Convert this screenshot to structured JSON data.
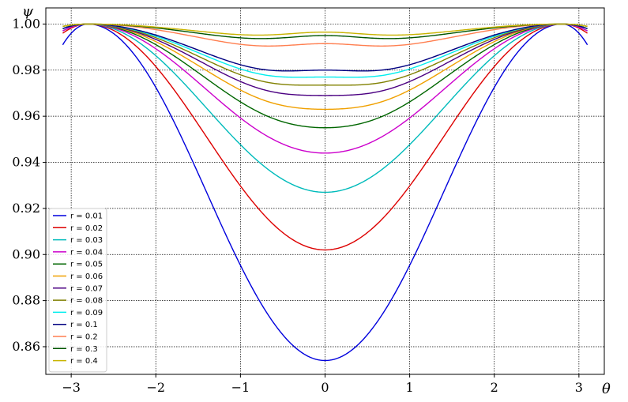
{
  "chart_data": {
    "type": "line",
    "xlabel": "θ",
    "ylabel": "ψ",
    "xlim": [
      -3.3,
      3.3
    ],
    "ylim": [
      0.848,
      1.007
    ],
    "xticks": [
      "−3",
      "−2",
      "−1",
      "0",
      "1",
      "2",
      "3"
    ],
    "yticks": [
      "0.86",
      "0.88",
      "0.90",
      "0.92",
      "0.94",
      "0.96",
      "0.98",
      "1.00"
    ],
    "grid": true,
    "legend_position": "lower-left",
    "x_range": [
      -3.1,
      3.1
    ],
    "peak_x": 2.8,
    "series": [
      {
        "name": "r = 0.01",
        "color": "#0000dd",
        "min": 0.854,
        "dip": 0.0,
        "edge": 0.991
      },
      {
        "name": "r = 0.02",
        "color": "#dd0000",
        "min": 0.902,
        "dip": 0.0,
        "edge": 0.996
      },
      {
        "name": "r = 0.03",
        "color": "#00bbbb",
        "min": 0.927,
        "dip": 0.0,
        "edge": 0.997
      },
      {
        "name": "r = 0.04",
        "color": "#cc00cc",
        "min": 0.943,
        "dip": 0.001,
        "edge": 0.997
      },
      {
        "name": "r = 0.05",
        "color": "#006600",
        "min": 0.9525,
        "dip": 0.0025,
        "edge": 0.998
      },
      {
        "name": "r = 0.06",
        "color": "#f0a000",
        "min": 0.9595,
        "dip": 0.0035,
        "edge": 0.998
      },
      {
        "name": "r = 0.07",
        "color": "#4b0082",
        "min": 0.9645,
        "dip": 0.0045,
        "edge": 0.998
      },
      {
        "name": "r = 0.08",
        "color": "#808000",
        "min": 0.9685,
        "dip": 0.005,
        "edge": 0.998
      },
      {
        "name": "r = 0.09",
        "color": "#00eeee",
        "min": 0.972,
        "dip": 0.005,
        "edge": 0.998
      },
      {
        "name": "r = 0.1",
        "color": "#000080",
        "min": 0.9745,
        "dip": 0.0055,
        "edge": 0.998
      },
      {
        "name": "r = 0.2",
        "color": "#ff7f50",
        "min": 0.987,
        "dip": 0.0045,
        "edge": 0.999
      },
      {
        "name": "r = 0.3",
        "color": "#005500",
        "min": 0.991,
        "dip": 0.004,
        "edge": 0.999
      },
      {
        "name": "r = 0.4",
        "color": "#c8b400",
        "min": 0.993,
        "dip": 0.0035,
        "edge": 0.999
      }
    ]
  }
}
